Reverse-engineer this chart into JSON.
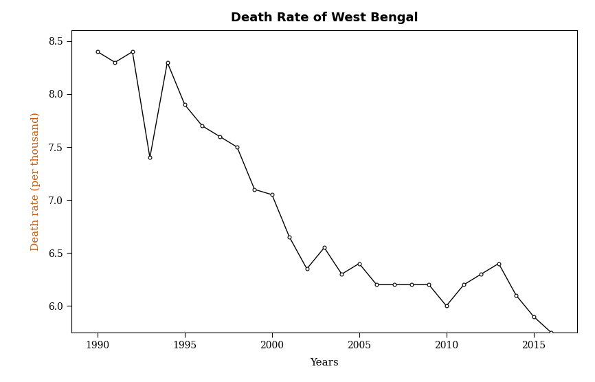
{
  "title": "Death Rate of West Bengal",
  "xlabel": "Years",
  "ylabel": "Death rate (per thousand)",
  "years": [
    1990,
    1991,
    1992,
    1993,
    1994,
    1995,
    1996,
    1997,
    1998,
    1999,
    2000,
    2001,
    2002,
    2003,
    2004,
    2005,
    2006,
    2007,
    2008,
    2009,
    2010,
    2011,
    2012,
    2013,
    2014,
    2015,
    2016
  ],
  "values": [
    8.4,
    8.3,
    8.4,
    7.4,
    8.3,
    7.9,
    7.7,
    7.6,
    7.5,
    7.1,
    7.05,
    6.65,
    6.35,
    6.55,
    6.3,
    6.4,
    6.2,
    6.2,
    6.2,
    6.2,
    6.0,
    6.2,
    6.3,
    6.4,
    6.1,
    5.9,
    5.75
  ],
  "line_color": "#000000",
  "marker": "o",
  "markersize": 3.5,
  "markerfacecolor": "white",
  "markeredgecolor": "#000000",
  "linewidth": 1.0,
  "ylabel_color": "#cc5500",
  "title_fontsize": 13,
  "label_fontsize": 11,
  "tick_fontsize": 10,
  "ylim_bottom": 5.75,
  "ylim_top": 8.6,
  "yticks": [
    6.0,
    6.5,
    7.0,
    7.5,
    8.0,
    8.5
  ],
  "xticks": [
    1990,
    1995,
    2000,
    2005,
    2010,
    2015
  ],
  "xlim_left": 1988.5,
  "xlim_right": 2017.5,
  "background_color": "#ffffff"
}
